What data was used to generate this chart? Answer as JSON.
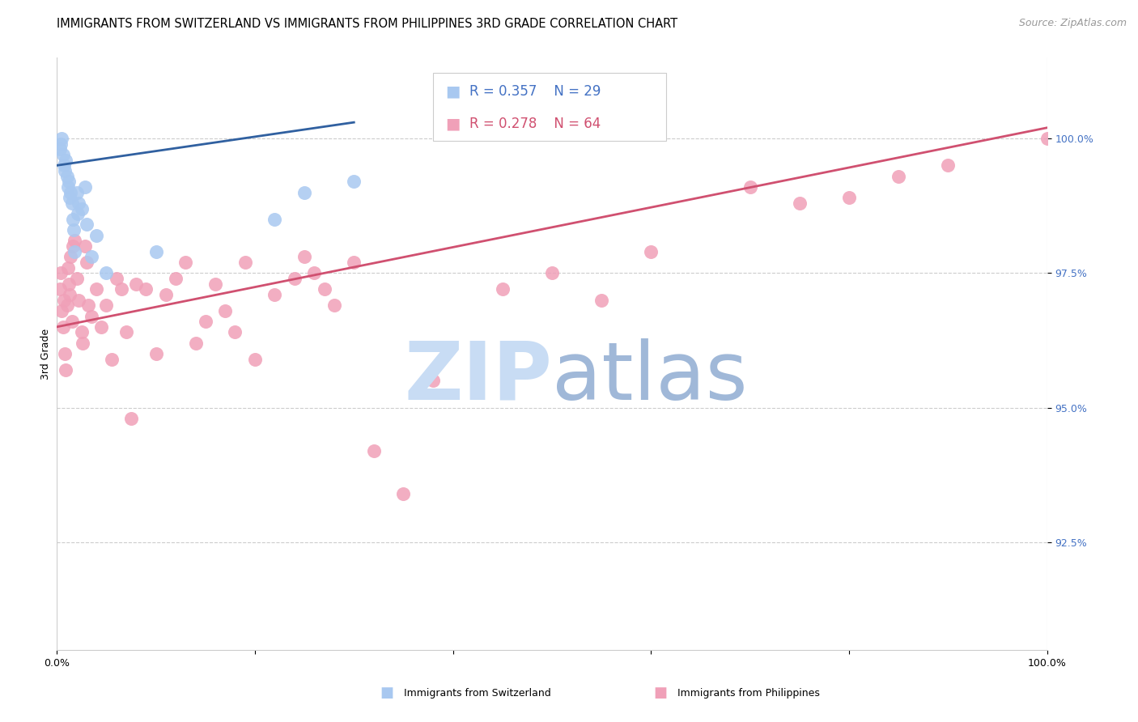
{
  "title": "IMMIGRANTS FROM SWITZERLAND VS IMMIGRANTS FROM PHILIPPINES 3RD GRADE CORRELATION CHART",
  "source": "Source: ZipAtlas.com",
  "ylabel": "3rd Grade",
  "legend_blue_r": "R = 0.357",
  "legend_blue_n": "N = 29",
  "legend_pink_r": "R = 0.278",
  "legend_pink_n": "N = 64",
  "xlim": [
    0.0,
    100.0
  ],
  "ylim": [
    90.5,
    101.5
  ],
  "yticks": [
    92.5,
    95.0,
    97.5,
    100.0
  ],
  "blue_color": "#A8C8F0",
  "blue_line_color": "#3060A0",
  "pink_color": "#F0A0B8",
  "pink_line_color": "#D05070",
  "grid_color": "#CCCCCC",
  "watermark_zip_color": "#C8DCF4",
  "watermark_atlas_color": "#A0B8D8",
  "blue_scatter_x": [
    0.3,
    0.4,
    0.5,
    0.6,
    0.7,
    0.8,
    0.9,
    1.0,
    1.1,
    1.2,
    1.3,
    1.4,
    1.5,
    1.6,
    1.7,
    1.8,
    2.0,
    2.1,
    2.2,
    2.5,
    2.8,
    3.0,
    3.5,
    4.0,
    5.0,
    10.0,
    22.0,
    25.0,
    30.0
  ],
  "blue_scatter_y": [
    99.8,
    99.9,
    100.0,
    99.7,
    99.5,
    99.4,
    99.6,
    99.3,
    99.1,
    99.2,
    98.9,
    99.0,
    98.8,
    98.5,
    98.3,
    97.9,
    99.0,
    98.6,
    98.8,
    98.7,
    99.1,
    98.4,
    97.8,
    98.2,
    97.5,
    97.9,
    98.5,
    99.0,
    99.2
  ],
  "pink_scatter_x": [
    0.3,
    0.4,
    0.5,
    0.6,
    0.7,
    0.8,
    0.9,
    1.0,
    1.1,
    1.2,
    1.3,
    1.4,
    1.5,
    1.6,
    1.8,
    2.0,
    2.2,
    2.5,
    2.6,
    2.8,
    3.0,
    3.2,
    3.5,
    4.0,
    4.5,
    5.0,
    5.5,
    6.0,
    6.5,
    7.0,
    7.5,
    8.0,
    9.0,
    10.0,
    11.0,
    12.0,
    13.0,
    14.0,
    15.0,
    16.0,
    17.0,
    18.0,
    19.0,
    20.0,
    22.0,
    24.0,
    25.0,
    26.0,
    27.0,
    28.0,
    30.0,
    32.0,
    35.0,
    38.0,
    45.0,
    50.0,
    55.0,
    60.0,
    70.0,
    75.0,
    80.0,
    85.0,
    90.0,
    100.0
  ],
  "pink_scatter_y": [
    97.2,
    97.5,
    96.8,
    96.5,
    97.0,
    96.0,
    95.7,
    96.9,
    97.6,
    97.3,
    97.1,
    97.8,
    96.6,
    98.0,
    98.1,
    97.4,
    97.0,
    96.4,
    96.2,
    98.0,
    97.7,
    96.9,
    96.7,
    97.2,
    96.5,
    96.9,
    95.9,
    97.4,
    97.2,
    96.4,
    94.8,
    97.3,
    97.2,
    96.0,
    97.1,
    97.4,
    97.7,
    96.2,
    96.6,
    97.3,
    96.8,
    96.4,
    97.7,
    95.9,
    97.1,
    97.4,
    97.8,
    97.5,
    97.2,
    96.9,
    97.7,
    94.2,
    93.4,
    95.5,
    97.2,
    97.5,
    97.0,
    97.9,
    99.1,
    98.8,
    98.9,
    99.3,
    99.5,
    100.0
  ],
  "blue_line_x0": 0.0,
  "blue_line_x1": 30.0,
  "blue_line_y0": 99.5,
  "blue_line_y1": 100.3,
  "pink_line_x0": 0.0,
  "pink_line_x1": 100.0,
  "pink_line_y0": 96.5,
  "pink_line_y1": 100.2,
  "bottom_label_switzerland": "Immigrants from Switzerland",
  "bottom_label_philippines": "Immigrants from Philippines",
  "title_fontsize": 10.5,
  "axis_label_fontsize": 9,
  "tick_fontsize": 9,
  "legend_fontsize": 12,
  "source_fontsize": 9
}
